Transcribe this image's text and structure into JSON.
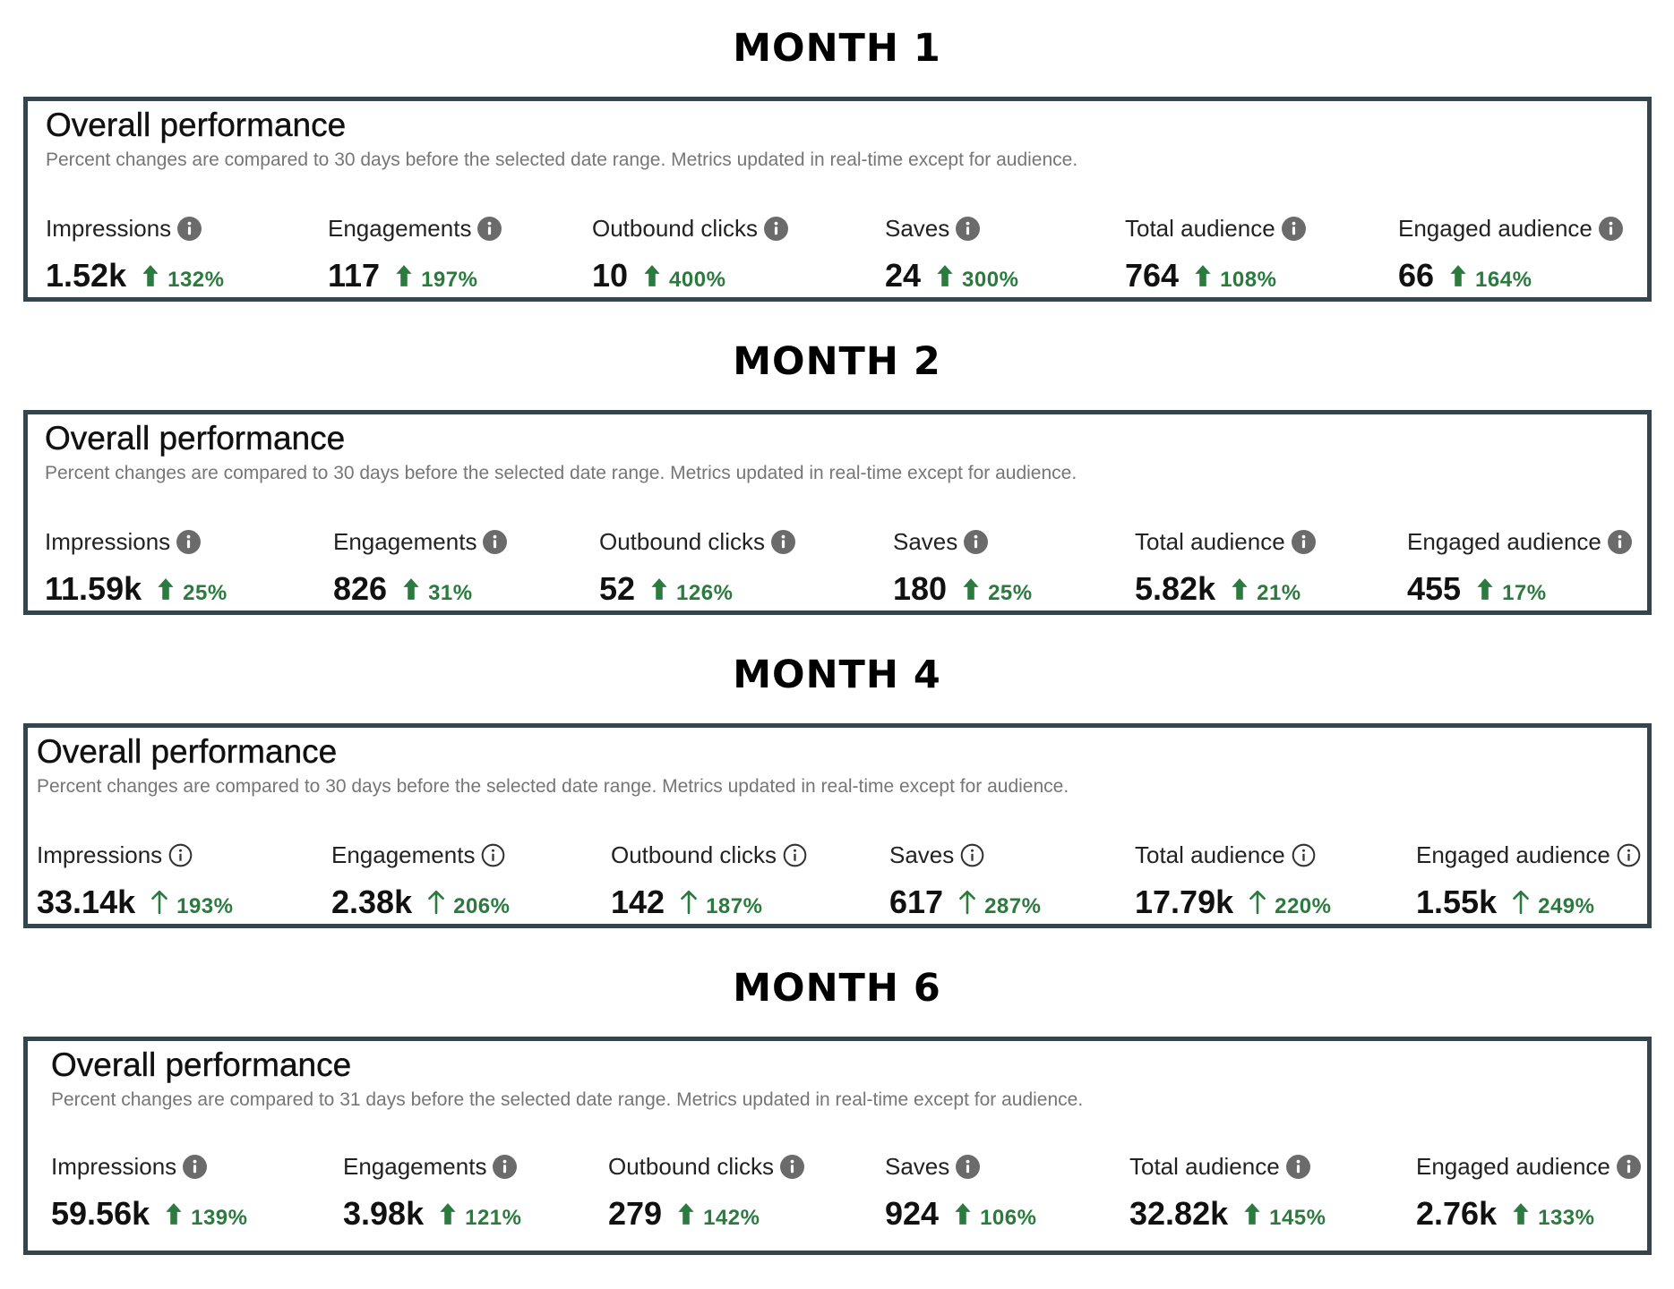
{
  "colors": {
    "panel_border": "#34454c",
    "positive_change": "#2b7a3e",
    "subtitle_text": "#767676",
    "info_icon_filled": "#6b6b6b"
  },
  "sections": [
    {
      "month_label": "MONTH 1",
      "title": "Overall performance",
      "subtitle": "Percent changes are compared to 30 days before the selected date range. Metrics updated in real-time except for audience.",
      "icon_style": "filled",
      "metrics": [
        {
          "label": "Impressions",
          "value": "1.52k",
          "change": "132%",
          "icon": "info-icon",
          "trend": "arrow-up-icon"
        },
        {
          "label": "Engagements",
          "value": "117",
          "change": "197%",
          "icon": "info-icon",
          "trend": "arrow-up-icon"
        },
        {
          "label": "Outbound clicks",
          "value": "10",
          "change": "400%",
          "icon": "info-icon",
          "trend": "arrow-up-icon"
        },
        {
          "label": "Saves",
          "value": "24",
          "change": "300%",
          "icon": "info-icon",
          "trend": "arrow-up-icon"
        },
        {
          "label": "Total audience",
          "value": "764",
          "change": "108%",
          "icon": "info-icon",
          "trend": "arrow-up-icon"
        },
        {
          "label": "Engaged audience",
          "value": "66",
          "change": "164%",
          "icon": "info-icon",
          "trend": "arrow-up-icon"
        }
      ]
    },
    {
      "month_label": "MONTH 2",
      "title": "Overall performance",
      "subtitle": "Percent changes are compared to 30 days before the selected date range. Metrics updated in real-time except for audience.",
      "icon_style": "filled",
      "metrics": [
        {
          "label": "Impressions",
          "value": "11.59k",
          "change": "25%",
          "icon": "info-icon",
          "trend": "arrow-up-icon"
        },
        {
          "label": "Engagements",
          "value": "826",
          "change": "31%",
          "icon": "info-icon",
          "trend": "arrow-up-icon"
        },
        {
          "label": "Outbound clicks",
          "value": "52",
          "change": "126%",
          "icon": "info-icon",
          "trend": "arrow-up-icon"
        },
        {
          "label": "Saves",
          "value": "180",
          "change": "25%",
          "icon": "info-icon",
          "trend": "arrow-up-icon"
        },
        {
          "label": "Total audience",
          "value": "5.82k",
          "change": "21%",
          "icon": "info-icon",
          "trend": "arrow-up-icon"
        },
        {
          "label": "Engaged audience",
          "value": "455",
          "change": "17%",
          "icon": "info-icon",
          "trend": "arrow-up-icon"
        }
      ]
    },
    {
      "month_label": "MONTH 4",
      "title": "Overall performance",
      "subtitle": "Percent changes are compared to 30 days before the selected date range. Metrics updated in real-time except for audience.",
      "icon_style": "outline",
      "metrics": [
        {
          "label": "Impressions",
          "value": "33.14k",
          "change": "193%",
          "icon": "info-icon",
          "trend": "arrow-up-icon"
        },
        {
          "label": "Engagements",
          "value": "2.38k",
          "change": "206%",
          "icon": "info-icon",
          "trend": "arrow-up-icon"
        },
        {
          "label": "Outbound clicks",
          "value": "142",
          "change": "187%",
          "icon": "info-icon",
          "trend": "arrow-up-icon"
        },
        {
          "label": "Saves",
          "value": "617",
          "change": "287%",
          "icon": "info-icon",
          "trend": "arrow-up-icon"
        },
        {
          "label": "Total audience",
          "value": "17.79k",
          "change": "220%",
          "icon": "info-icon",
          "trend": "arrow-up-icon"
        },
        {
          "label": "Engaged audience",
          "value": "1.55k",
          "change": "249%",
          "icon": "info-icon",
          "trend": "arrow-up-icon"
        }
      ]
    },
    {
      "month_label": "MONTH 6",
      "title": "Overall performance",
      "subtitle": "Percent changes are compared to 31 days before the selected date range. Metrics updated in real-time except for audience.",
      "icon_style": "filled",
      "metrics": [
        {
          "label": "Impressions",
          "value": "59.56k",
          "change": "139%",
          "icon": "info-icon",
          "trend": "arrow-up-icon"
        },
        {
          "label": "Engagements",
          "value": "3.98k",
          "change": "121%",
          "icon": "info-icon",
          "trend": "arrow-up-icon"
        },
        {
          "label": "Outbound clicks",
          "value": "279",
          "change": "142%",
          "icon": "info-icon",
          "trend": "arrow-up-icon"
        },
        {
          "label": "Saves",
          "value": "924",
          "change": "106%",
          "icon": "info-icon",
          "trend": "arrow-up-icon"
        },
        {
          "label": "Total audience",
          "value": "32.82k",
          "change": "145%",
          "icon": "info-icon",
          "trend": "arrow-up-icon"
        },
        {
          "label": "Engaged audience",
          "value": "2.76k",
          "change": "133%",
          "icon": "info-icon",
          "trend": "arrow-up-icon"
        }
      ]
    }
  ]
}
